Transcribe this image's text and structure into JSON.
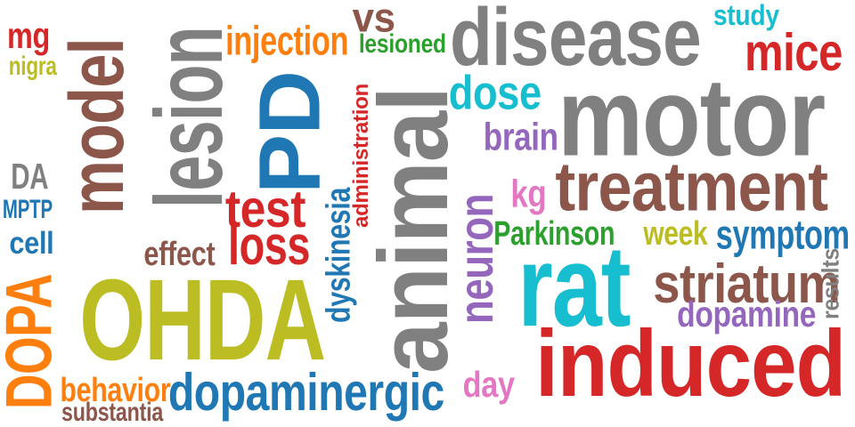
{
  "palette": {
    "gray": "#808080",
    "brown": "#8c564b",
    "blue": "#1f77b4",
    "red": "#d62728",
    "orange": "#ff7f0e",
    "olive": "#bcbd22",
    "cyan": "#17becf",
    "purple": "#9467bd",
    "pink": "#e377c2",
    "green": "#2ca02c"
  },
  "words": [
    {
      "text": "motor",
      "color": "gray",
      "vertical": false
    },
    {
      "text": "disease",
      "color": "gray",
      "vertical": false
    },
    {
      "text": "animal",
      "color": "gray",
      "vertical": true
    },
    {
      "text": "rat",
      "color": "cyan",
      "vertical": false
    },
    {
      "text": "induced",
      "color": "red",
      "vertical": false
    },
    {
      "text": "OHDA",
      "color": "olive",
      "vertical": false
    },
    {
      "text": "PD",
      "color": "blue",
      "vertical": true
    },
    {
      "text": "model",
      "color": "brown",
      "vertical": true
    },
    {
      "text": "lesion",
      "color": "gray",
      "vertical": true
    },
    {
      "text": "treatment",
      "color": "brown",
      "vertical": false
    },
    {
      "text": "neuron",
      "color": "purple",
      "vertical": true
    },
    {
      "text": "dopaminergic",
      "color": "blue",
      "vertical": false
    },
    {
      "text": "DOPA",
      "color": "orange",
      "vertical": true
    },
    {
      "text": "striatum",
      "color": "brown",
      "vertical": false
    },
    {
      "text": "mice",
      "color": "red",
      "vertical": false
    },
    {
      "text": "test",
      "color": "red",
      "vertical": false
    },
    {
      "text": "loss",
      "color": "red",
      "vertical": false
    },
    {
      "text": "dose",
      "color": "cyan",
      "vertical": false
    },
    {
      "text": "symptom",
      "color": "blue",
      "vertical": false
    },
    {
      "text": "vs",
      "color": "brown",
      "vertical": false
    },
    {
      "text": "injection",
      "color": "orange",
      "vertical": false
    },
    {
      "text": "dyskinesia",
      "color": "blue",
      "vertical": true
    },
    {
      "text": "dopamine",
      "color": "purple",
      "vertical": false
    },
    {
      "text": "brain",
      "color": "purple",
      "vertical": false
    },
    {
      "text": "behavior",
      "color": "orange",
      "vertical": false
    },
    {
      "text": "effect",
      "color": "brown",
      "vertical": false
    },
    {
      "text": "Parkinson",
      "color": "green",
      "vertical": false
    },
    {
      "text": "day",
      "color": "pink",
      "vertical": false
    },
    {
      "text": "kg",
      "color": "pink",
      "vertical": false
    },
    {
      "text": "week",
      "color": "olive",
      "vertical": false
    },
    {
      "text": "mg",
      "color": "red",
      "vertical": false
    },
    {
      "text": "lesioned",
      "color": "green",
      "vertical": false
    },
    {
      "text": "study",
      "color": "cyan",
      "vertical": false
    },
    {
      "text": "DA",
      "color": "gray",
      "vertical": false
    },
    {
      "text": "cell",
      "color": "blue",
      "vertical": false
    },
    {
      "text": "MPTP",
      "color": "blue",
      "vertical": false
    },
    {
      "text": "substantia",
      "color": "brown",
      "vertical": false
    },
    {
      "text": "nigra",
      "color": "olive",
      "vertical": false
    },
    {
      "text": "administration",
      "color": "red",
      "vertical": true
    },
    {
      "text": "results",
      "color": "gray",
      "vertical": true
    }
  ]
}
